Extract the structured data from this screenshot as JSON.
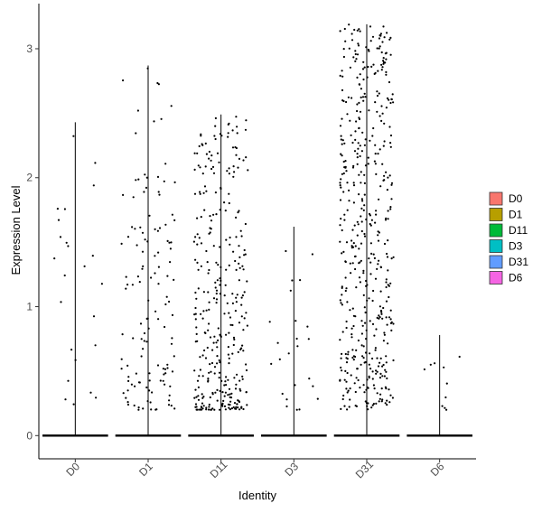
{
  "chart_data": {
    "type": "violin",
    "xlabel": "Identity",
    "ylabel": "Expression Level",
    "categories": [
      "D0",
      "D1",
      "D11",
      "D3",
      "D31",
      "D6"
    ],
    "ylim": [
      -0.18,
      3.35
    ],
    "yticks": [
      0,
      1,
      2,
      3
    ],
    "grid": false,
    "legend": {
      "position": "right",
      "items": [
        {
          "label": "D0",
          "color": "#F8766D"
        },
        {
          "label": "D1",
          "color": "#B79F00"
        },
        {
          "label": "D11",
          "color": "#00BA38"
        },
        {
          "label": "D3",
          "color": "#00BFC4"
        },
        {
          "label": "D31",
          "color": "#619CFF"
        },
        {
          "label": "D6",
          "color": "#F564E3"
        }
      ]
    },
    "series": [
      {
        "category": "D0",
        "max": 2.43,
        "nonzero_points": 24,
        "zero_points": 600
      },
      {
        "category": "D1",
        "max": 2.87,
        "nonzero_points": 130,
        "zero_points": 600
      },
      {
        "category": "D11",
        "max": 2.49,
        "nonzero_points": 330,
        "zero_points": 600
      },
      {
        "category": "D3",
        "max": 1.62,
        "nonzero_points": 24,
        "zero_points": 600
      },
      {
        "category": "D31",
        "max": 3.19,
        "nonzero_points": 480,
        "zero_points": 600
      },
      {
        "category": "D6",
        "max": 0.78,
        "nonzero_points": 10,
        "zero_points": 600
      }
    ]
  }
}
